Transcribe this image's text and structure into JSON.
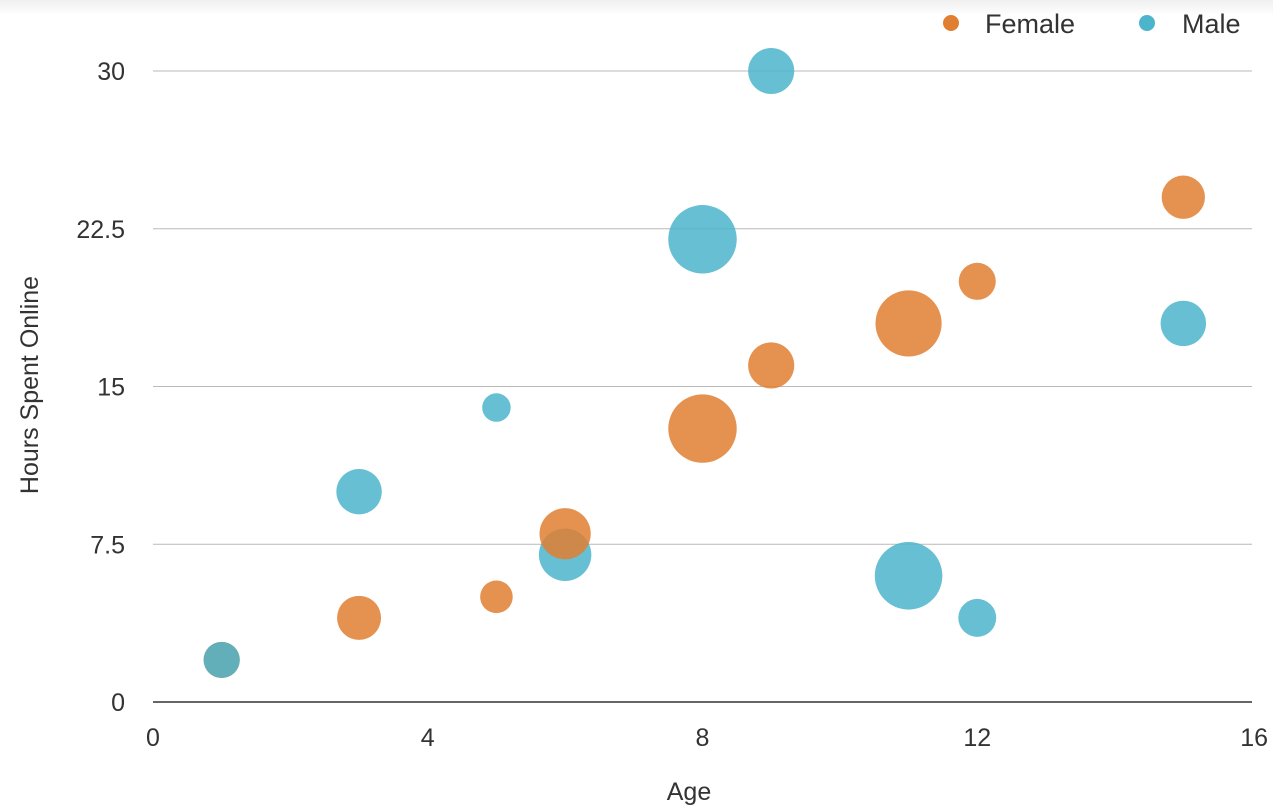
{
  "chart_data": {
    "type": "bubble",
    "xlabel": "Age",
    "ylabel": "Hours Spent Online",
    "xlim": [
      0,
      16
    ],
    "ylim": [
      0,
      30
    ],
    "x_ticks": [
      "0",
      "4",
      "8",
      "12",
      "16"
    ],
    "y_ticks": [
      "0",
      "7.5",
      "15",
      "22.5",
      "30"
    ],
    "grid": true,
    "legend": {
      "position": "top-right"
    },
    "series": [
      {
        "name": "Female",
        "color": "#e07f31",
        "points": [
          {
            "x": 1,
            "y": 2,
            "size": 2.1
          },
          {
            "x": 3,
            "y": 4,
            "size": 3.1
          },
          {
            "x": 5,
            "y": 5,
            "size": 1.7
          },
          {
            "x": 6,
            "y": 8,
            "size": 4.2
          },
          {
            "x": 8,
            "y": 13,
            "size": 7.5
          },
          {
            "x": 9,
            "y": 16,
            "size": 3.4
          },
          {
            "x": 11,
            "y": 18,
            "size": 7.0
          },
          {
            "x": 12,
            "y": 20,
            "size": 2.2
          },
          {
            "x": 15,
            "y": 24,
            "size": 3.0
          }
        ]
      },
      {
        "name": "Male",
        "color": "#4cb4cb",
        "points": [
          {
            "x": 1,
            "y": 2,
            "size": 2.1
          },
          {
            "x": 3,
            "y": 10,
            "size": 3.3
          },
          {
            "x": 5,
            "y": 14,
            "size": 1.3
          },
          {
            "x": 6,
            "y": 7,
            "size": 4.4
          },
          {
            "x": 8,
            "y": 22,
            "size": 7.5
          },
          {
            "x": 9,
            "y": 30,
            "size": 3.4
          },
          {
            "x": 11,
            "y": 6,
            "size": 7.3
          },
          {
            "x": 12,
            "y": 4,
            "size": 2.3
          },
          {
            "x": 15,
            "y": 18,
            "size": 3.3
          }
        ]
      }
    ]
  }
}
